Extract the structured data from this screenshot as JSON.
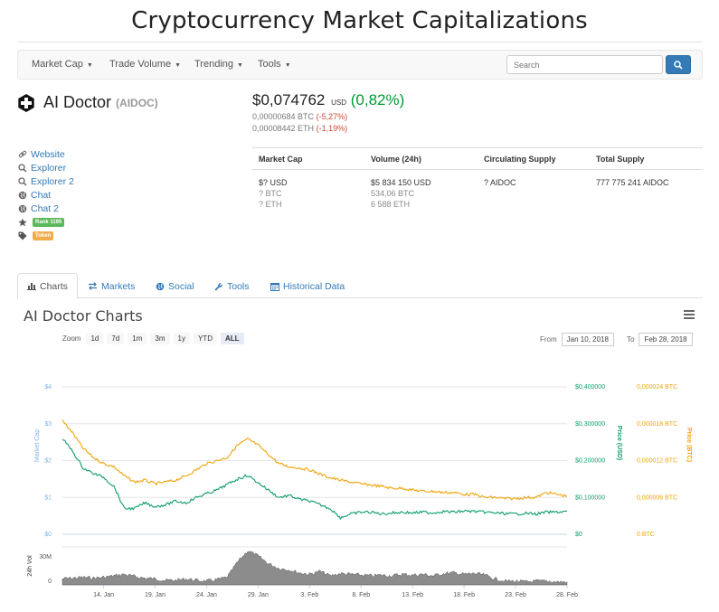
{
  "site": {
    "title": "Cryptocurrency Market Capitalizations"
  },
  "nav": {
    "items": [
      "Market Cap",
      "Trade Volume",
      "Trending",
      "Tools"
    ],
    "search_placeholder": "Search"
  },
  "coin": {
    "name": "AI Doctor",
    "symbol": "(AIDOC)",
    "price_usd": "$0,074762",
    "usd_unit": "USD",
    "change_usd": "(0,82%)",
    "price_btc": "0,00000684 BTC",
    "change_btc": "(-5,27%)",
    "price_eth": "0,00008442 ETH",
    "change_eth": "(-1,19%)"
  },
  "links": {
    "website": "Website",
    "explorer": "Explorer",
    "explorer2": "Explorer 2",
    "chat": "Chat",
    "chat2": "Chat 2",
    "rank": "Rank 1195",
    "tag": "Token"
  },
  "stats": {
    "headers": [
      "Market Cap",
      "Volume (24h)",
      "Circulating Supply",
      "Total Supply"
    ],
    "market_cap": [
      "$? USD",
      "? BTC",
      "? ETH"
    ],
    "volume": [
      "$5 834 150 USD",
      "534,06 BTC",
      "6 588 ETH"
    ],
    "circulating": "? AIDOC",
    "total": "777 775 241 AIDOC"
  },
  "tabs": [
    "Charts",
    "Markets",
    "Social",
    "Tools",
    "Historical Data"
  ],
  "charts": {
    "title": "AI Doctor Charts",
    "zoom_label": "Zoom",
    "zoom_buttons": [
      "1d",
      "7d",
      "1m",
      "3m",
      "1y",
      "YTD",
      "ALL"
    ],
    "from_label": "From",
    "from_value": "Jan 10, 2018",
    "to_label": "To",
    "to_value": "Feb 28, 2018"
  },
  "colors": {
    "market_cap": "#7cb5ec",
    "price_usd": "#0f9d6e",
    "price_btc": "#f0a30a",
    "volume": "#666666"
  },
  "chart_data": {
    "type": "line",
    "ylabel_left": "Market Cap",
    "ylabel_right_usd": "Price (USD)",
    "ylabel_right_btc": "Price (BTC)",
    "ylabel_volume": "24h Vol",
    "left_ticks": [
      "$4",
      "$3",
      "$2",
      "$1",
      "$0"
    ],
    "usd_ticks": [
      "$0,400000",
      "$0,300000",
      "$0,200000",
      "$0,100000",
      "$0"
    ],
    "btc_ticks": [
      "0,000024 BTC",
      "0,000018 BTC",
      "0,000012 BTC",
      "0,000006 BTC",
      "0 BTC"
    ],
    "vol_ticks": [
      "30M",
      "0"
    ],
    "x_ticks": [
      "14. Jan",
      "19. Jan",
      "24. Jan",
      "29. Jan",
      "3. Feb",
      "8. Feb",
      "13. Feb",
      "18. Feb",
      "23. Feb",
      "28. Feb"
    ],
    "usd_range": [
      0,
      0.4
    ],
    "btc_range": [
      0,
      2.4e-05
    ],
    "vol_range": [
      0,
      50000000
    ],
    "x_range": [
      "2018-01-10",
      "2018-02-28"
    ],
    "series": [
      {
        "name": "Price (USD)",
        "points": [
          [
            "2018-01-10",
            0.26
          ],
          [
            "2018-01-11",
            0.225
          ],
          [
            "2018-01-12",
            0.18
          ],
          [
            "2018-01-13",
            0.165
          ],
          [
            "2018-01-14",
            0.155
          ],
          [
            "2018-01-15",
            0.13
          ],
          [
            "2018-01-16",
            0.07
          ],
          [
            "2018-01-17",
            0.07
          ],
          [
            "2018-01-18",
            0.085
          ],
          [
            "2018-01-19",
            0.075
          ],
          [
            "2018-01-20",
            0.08
          ],
          [
            "2018-01-21",
            0.09
          ],
          [
            "2018-01-22",
            0.085
          ],
          [
            "2018-01-23",
            0.1
          ],
          [
            "2018-01-24",
            0.11
          ],
          [
            "2018-01-25",
            0.12
          ],
          [
            "2018-01-26",
            0.135
          ],
          [
            "2018-01-27",
            0.15
          ],
          [
            "2018-01-28",
            0.16
          ],
          [
            "2018-01-29",
            0.14
          ],
          [
            "2018-01-30",
            0.12
          ],
          [
            "2018-01-31",
            0.1
          ],
          [
            "2018-02-01",
            0.105
          ],
          [
            "2018-02-02",
            0.095
          ],
          [
            "2018-02-03",
            0.09
          ],
          [
            "2018-02-04",
            0.08
          ],
          [
            "2018-02-05",
            0.07
          ],
          [
            "2018-02-06",
            0.045
          ],
          [
            "2018-02-07",
            0.055
          ],
          [
            "2018-02-08",
            0.06
          ],
          [
            "2018-02-09",
            0.06
          ],
          [
            "2018-02-10",
            0.055
          ],
          [
            "2018-02-11",
            0.058
          ],
          [
            "2018-02-12",
            0.06
          ],
          [
            "2018-02-13",
            0.058
          ],
          [
            "2018-02-14",
            0.06
          ],
          [
            "2018-02-15",
            0.058
          ],
          [
            "2018-02-16",
            0.062
          ],
          [
            "2018-02-17",
            0.06
          ],
          [
            "2018-02-18",
            0.063
          ],
          [
            "2018-02-19",
            0.062
          ],
          [
            "2018-02-20",
            0.06
          ],
          [
            "2018-02-21",
            0.058
          ],
          [
            "2018-02-22",
            0.056
          ],
          [
            "2018-02-23",
            0.055
          ],
          [
            "2018-02-24",
            0.057
          ],
          [
            "2018-02-25",
            0.055
          ],
          [
            "2018-02-26",
            0.06
          ],
          [
            "2018-02-27",
            0.06
          ],
          [
            "2018-02-28",
            0.062
          ]
        ]
      },
      {
        "name": "Price (BTC)",
        "points": [
          [
            "2018-01-10",
            1.85e-05
          ],
          [
            "2018-01-11",
            1.65e-05
          ],
          [
            "2018-01-12",
            1.4e-05
          ],
          [
            "2018-01-13",
            1.25e-05
          ],
          [
            "2018-01-14",
            1.15e-05
          ],
          [
            "2018-01-15",
            1.1e-05
          ],
          [
            "2018-01-16",
            9.5e-06
          ],
          [
            "2018-01-17",
            8.5e-06
          ],
          [
            "2018-01-18",
            8.8e-06
          ],
          [
            "2018-01-19",
            8.2e-06
          ],
          [
            "2018-01-20",
            8.5e-06
          ],
          [
            "2018-01-21",
            8.8e-06
          ],
          [
            "2018-01-22",
            9.5e-06
          ],
          [
            "2018-01-23",
            1.05e-05
          ],
          [
            "2018-01-24",
            1.15e-05
          ],
          [
            "2018-01-25",
            1.2e-05
          ],
          [
            "2018-01-26",
            1.25e-05
          ],
          [
            "2018-01-27",
            1.45e-05
          ],
          [
            "2018-01-28",
            1.55e-05
          ],
          [
            "2018-01-29",
            1.45e-05
          ],
          [
            "2018-01-30",
            1.3e-05
          ],
          [
            "2018-01-31",
            1.15e-05
          ],
          [
            "2018-02-01",
            1.1e-05
          ],
          [
            "2018-02-02",
            1.08e-05
          ],
          [
            "2018-02-03",
            1.05e-05
          ],
          [
            "2018-02-04",
            9.8e-06
          ],
          [
            "2018-02-05",
            9.2e-06
          ],
          [
            "2018-02-06",
            8.8e-06
          ],
          [
            "2018-02-07",
            8.5e-06
          ],
          [
            "2018-02-08",
            8.2e-06
          ],
          [
            "2018-02-09",
            8e-06
          ],
          [
            "2018-02-10",
            7.8e-06
          ],
          [
            "2018-02-11",
            7.5e-06
          ],
          [
            "2018-02-12",
            7.5e-06
          ],
          [
            "2018-02-13",
            7.2e-06
          ],
          [
            "2018-02-14",
            7e-06
          ],
          [
            "2018-02-15",
            7e-06
          ],
          [
            "2018-02-16",
            6.8e-06
          ],
          [
            "2018-02-17",
            6.8e-06
          ],
          [
            "2018-02-18",
            6.5e-06
          ],
          [
            "2018-02-19",
            6.5e-06
          ],
          [
            "2018-02-20",
            6e-06
          ],
          [
            "2018-02-21",
            6e-06
          ],
          [
            "2018-02-22",
            5.8e-06
          ],
          [
            "2018-02-23",
            5.8e-06
          ],
          [
            "2018-02-24",
            6e-06
          ],
          [
            "2018-02-25",
            6e-06
          ],
          [
            "2018-02-26",
            6.8e-06
          ],
          [
            "2018-02-27",
            6.5e-06
          ],
          [
            "2018-02-28",
            6.2e-06
          ]
        ]
      },
      {
        "name": "24h Vol",
        "points": [
          [
            "2018-01-10",
            8000000
          ],
          [
            "2018-01-11",
            9000000
          ],
          [
            "2018-01-12",
            10000000
          ],
          [
            "2018-01-13",
            9000000
          ],
          [
            "2018-01-14",
            10000000
          ],
          [
            "2018-01-15",
            12000000
          ],
          [
            "2018-01-16",
            14000000
          ],
          [
            "2018-01-17",
            11000000
          ],
          [
            "2018-01-18",
            9000000
          ],
          [
            "2018-01-19",
            8000000
          ],
          [
            "2018-01-20",
            6000000
          ],
          [
            "2018-01-21",
            6000000
          ],
          [
            "2018-01-22",
            8000000
          ],
          [
            "2018-01-23",
            6000000
          ],
          [
            "2018-01-24",
            5000000
          ],
          [
            "2018-01-25",
            7000000
          ],
          [
            "2018-01-26",
            10000000
          ],
          [
            "2018-01-27",
            30000000
          ],
          [
            "2018-01-28",
            45000000
          ],
          [
            "2018-01-29",
            38000000
          ],
          [
            "2018-01-30",
            28000000
          ],
          [
            "2018-01-31",
            22000000
          ],
          [
            "2018-02-01",
            20000000
          ],
          [
            "2018-02-02",
            16000000
          ],
          [
            "2018-02-03",
            14000000
          ],
          [
            "2018-02-04",
            18000000
          ],
          [
            "2018-02-05",
            12000000
          ],
          [
            "2018-02-06",
            15000000
          ],
          [
            "2018-02-07",
            14000000
          ],
          [
            "2018-02-08",
            13000000
          ],
          [
            "2018-02-09",
            12000000
          ],
          [
            "2018-02-10",
            13000000
          ],
          [
            "2018-02-11",
            12000000
          ],
          [
            "2018-02-12",
            14000000
          ],
          [
            "2018-02-13",
            13000000
          ],
          [
            "2018-02-14",
            14000000
          ],
          [
            "2018-02-15",
            12000000
          ],
          [
            "2018-02-16",
            15000000
          ],
          [
            "2018-02-17",
            16000000
          ],
          [
            "2018-02-18",
            14000000
          ],
          [
            "2018-02-19",
            15000000
          ],
          [
            "2018-02-20",
            13000000
          ],
          [
            "2018-02-21",
            8000000
          ],
          [
            "2018-02-22",
            5000000
          ],
          [
            "2018-02-23",
            5000000
          ],
          [
            "2018-02-24",
            4000000
          ],
          [
            "2018-02-25",
            5000000
          ],
          [
            "2018-02-26",
            5000000
          ],
          [
            "2018-02-27",
            4000000
          ],
          [
            "2018-02-28",
            4000000
          ]
        ]
      }
    ]
  }
}
